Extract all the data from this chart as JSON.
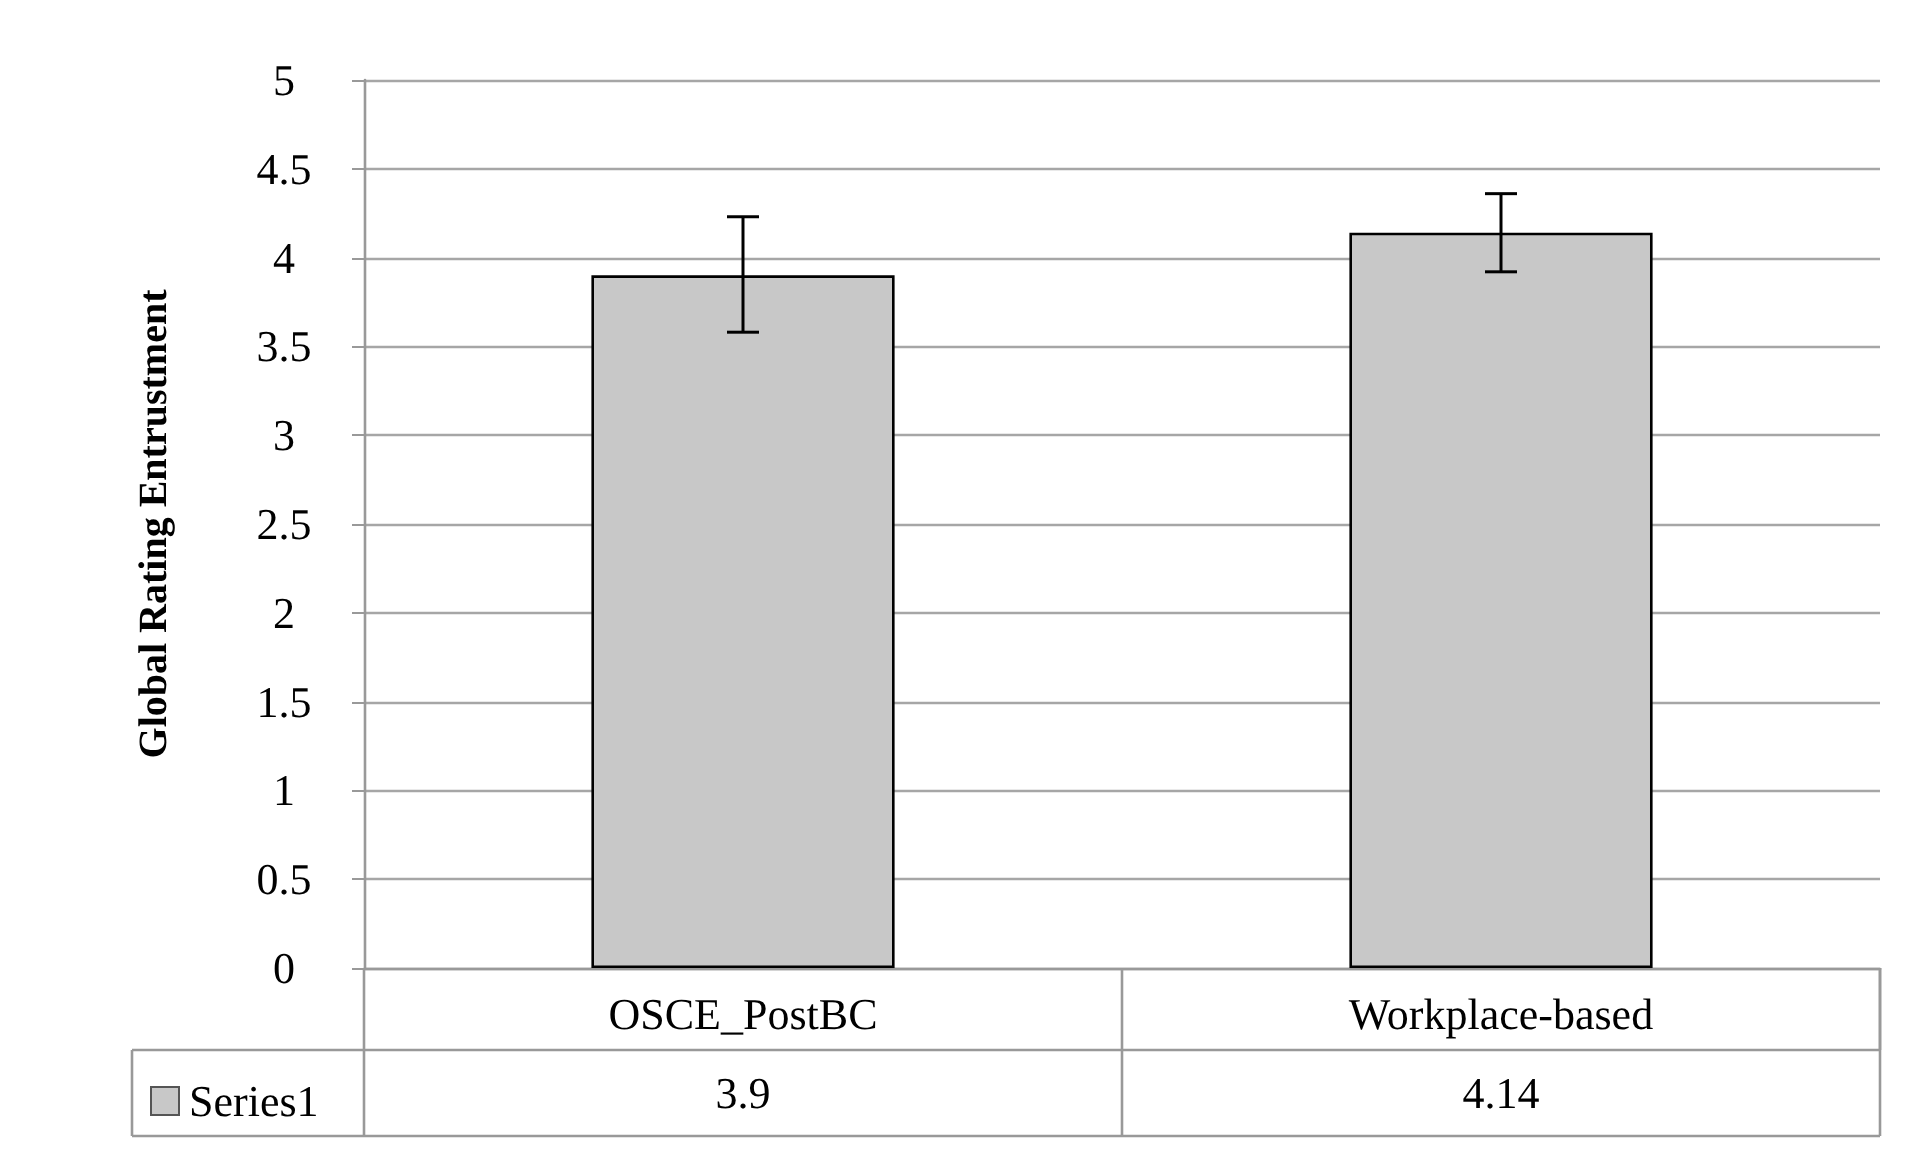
{
  "chart_data": {
    "type": "bar",
    "ylabel": "Global Rating Entrustment",
    "categories": [
      "OSCE_PostBC",
      "Workplace-based"
    ],
    "series": [
      {
        "name": "Series1",
        "color": "#c8c8c8",
        "values": [
          3.9,
          4.14
        ],
        "errors": [
          [
            3.58,
            4.23
          ],
          [
            3.92,
            4.36
          ]
        ]
      }
    ],
    "ylim": [
      0,
      5
    ],
    "yticks": [
      0,
      0.5,
      1,
      1.5,
      2,
      2.5,
      3,
      3.5,
      4,
      4.5,
      5
    ],
    "grid": "y",
    "data_labels": true,
    "legend": "bottom left"
  }
}
